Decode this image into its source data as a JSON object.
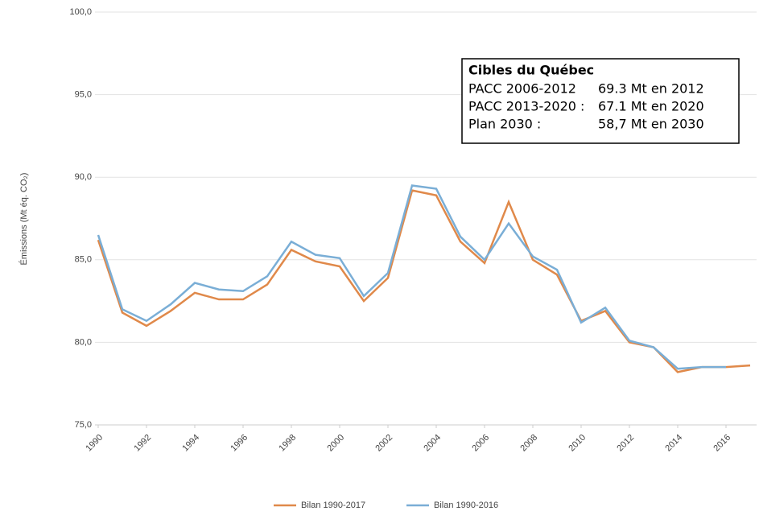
{
  "chart_data": {
    "type": "line",
    "y_label": "Émissions (Mt éq. CO₂)",
    "x": [
      1990,
      1991,
      1992,
      1993,
      1994,
      1995,
      1996,
      1997,
      1998,
      1999,
      2000,
      2001,
      2002,
      2003,
      2004,
      2005,
      2006,
      2007,
      2008,
      2009,
      2010,
      2011,
      2012,
      2013,
      2014,
      2015,
      2016,
      2017
    ],
    "series": [
      {
        "name": "Bilan 1990-2017",
        "color": "#e0894a",
        "values": [
          86.2,
          81.8,
          81.0,
          81.9,
          83.0,
          82.6,
          82.6,
          83.5,
          85.6,
          84.9,
          84.6,
          82.5,
          83.9,
          89.2,
          88.9,
          86.1,
          84.8,
          88.5,
          85.0,
          84.1,
          81.3,
          81.9,
          80.0,
          79.7,
          78.2,
          78.5,
          78.5,
          78.6
        ]
      },
      {
        "name": "Bilan 1990-2016",
        "color": "#7aaed6",
        "values": [
          86.5,
          82.0,
          81.3,
          82.3,
          83.6,
          83.2,
          83.1,
          84.0,
          86.1,
          85.3,
          85.1,
          82.8,
          84.2,
          89.5,
          89.3,
          86.4,
          85.0,
          87.2,
          85.2,
          84.4,
          81.2,
          82.1,
          80.1,
          79.7,
          78.4,
          78.5,
          78.5,
          null
        ]
      }
    ],
    "xlim": [
      1990,
      2017
    ],
    "xticks": [
      1990,
      1992,
      1994,
      1996,
      1998,
      2000,
      2002,
      2004,
      2006,
      2008,
      2010,
      2012,
      2014,
      2016
    ],
    "ylim": [
      75,
      100
    ],
    "yticks": [
      {
        "value": 75,
        "label": "75,0"
      },
      {
        "value": 80,
        "label": "80,0"
      },
      {
        "value": 85,
        "label": "85,0"
      },
      {
        "value": 90,
        "label": "90,0"
      },
      {
        "value": 95,
        "label": "95,0"
      },
      {
        "value": 100,
        "label": "100,0"
      }
    ],
    "grid": true,
    "annotation": {
      "title": "Cibles du Québec",
      "rows": [
        [
          "PACC 2006-2012",
          "69.3 Mt en 2012"
        ],
        [
          "PACC 2013-2020 :",
          "67.1 Mt en 2020"
        ],
        [
          "Plan 2030 :",
          "58,7 Mt en 2030"
        ]
      ]
    }
  }
}
